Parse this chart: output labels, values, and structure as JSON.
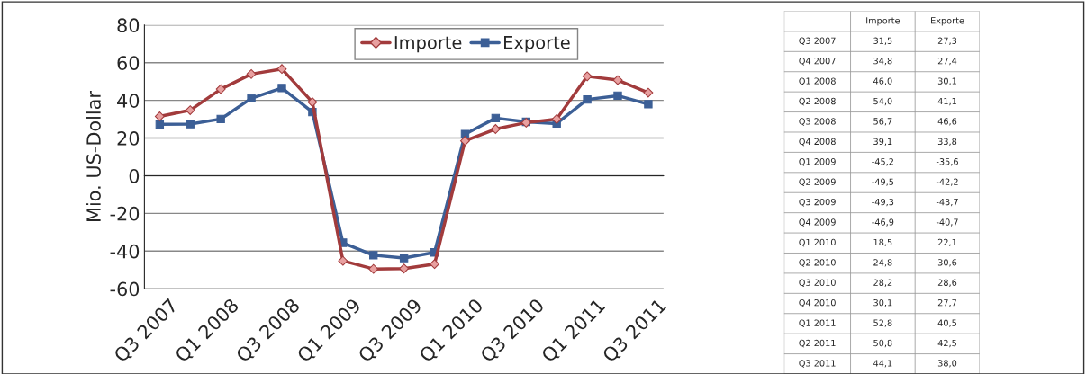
{
  "chart_data": [
    {
      "type": "line",
      "ylabel": "Mio. US-Dollar",
      "categories": [
        "Q3 2007",
        null,
        "Q1 2008",
        null,
        "Q3 2008",
        null,
        "Q1 2009",
        null,
        "Q3 2009",
        null,
        "Q1 2010",
        null,
        "Q3 2010",
        null,
        "Q1 2011",
        null,
        "Q3 2011"
      ],
      "series": [
        {
          "name": "Importe",
          "color": "#a23b3c",
          "marker": "diamond",
          "values": [
            31.5,
            34.8,
            46.0,
            54.0,
            56.7,
            39.1,
            -45.2,
            -49.5,
            -49.3,
            -46.9,
            18.5,
            24.8,
            28.2,
            30.1,
            52.8,
            50.8,
            44.1
          ]
        },
        {
          "name": "Exporte",
          "color": "#3c5f96",
          "marker": "square",
          "values": [
            27.3,
            27.4,
            30.1,
            41.1,
            46.6,
            33.8,
            -35.6,
            -42.2,
            -43.7,
            -40.7,
            22.1,
            30.6,
            28.6,
            27.7,
            40.5,
            42.5,
            38.0
          ]
        }
      ],
      "ylim": [
        -60,
        80
      ],
      "yticks": [
        -60,
        -40,
        -20,
        0,
        20,
        40,
        60,
        80
      ],
      "grid": "y",
      "legend": "top",
      "line_style": "solid"
    },
    {
      "type": "other",
      "categories": [
        "Q3 2007",
        "Q4 2007",
        "Q1 2008",
        "Q2 2008",
        "Q3 2008",
        "Q4 2008",
        "Q1 2009",
        "Q2 2009",
        "Q3 2009",
        "Q4 2009",
        "Q1 2010",
        "Q2 2010",
        "Q3 2010",
        "Q4 2010",
        "Q1 2011",
        "Q2 2011",
        "Q3 2011"
      ],
      "series": [
        {
          "name": "Importe",
          "values": [
            31.5,
            34.8,
            46.0,
            54.0,
            56.7,
            39.1,
            -45.2,
            -49.5,
            -49.3,
            -46.9,
            18.5,
            24.8,
            28.2,
            30.1,
            52.8,
            50.8,
            44.1
          ],
          "value_labels": [
            "31,5",
            "34,8",
            "46,0",
            "54,0",
            "56,7",
            "39,1",
            "-45,2",
            "-49,5",
            "-49,3",
            "-46,9",
            "18,5",
            "24,8",
            "28,2",
            "30,1",
            "52,8",
            "50,8",
            "44,1"
          ]
        },
        {
          "name": "Exporte",
          "values": [
            27.3,
            27.4,
            30.1,
            41.1,
            46.6,
            33.8,
            -35.6,
            -42.2,
            -43.7,
            -40.7,
            22.1,
            30.6,
            28.6,
            27.7,
            40.5,
            42.5,
            38.0
          ],
          "value_labels": [
            "27,3",
            "27,4",
            "30,1",
            "41,1",
            "46,6",
            "33,8",
            "-35,6",
            "-42,2",
            "-43,7",
            "-40,7",
            "22,1",
            "30,6",
            "28,6",
            "27,7",
            "40,5",
            "42,5",
            "38,0"
          ]
        }
      ]
    }
  ]
}
